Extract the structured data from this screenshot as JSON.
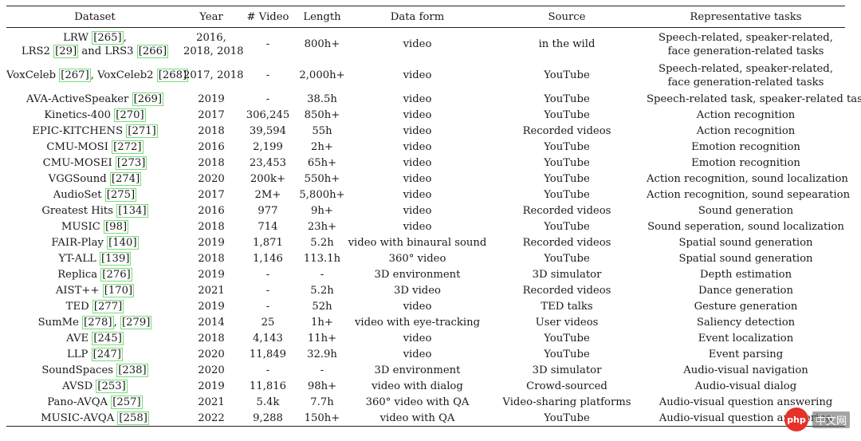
{
  "table": {
    "headers": [
      "Dataset",
      "Year",
      "# Video",
      "Length",
      "Data form",
      "Source",
      "Representative tasks"
    ],
    "rows": [
      {
        "dataset_parts": [
          "LRW ",
          {
            "ref": "[265]"
          },
          ",",
          "\n",
          "LRS2 ",
          {
            "ref": "[29]"
          },
          " and LRS3 ",
          {
            "ref": "[266]"
          }
        ],
        "year": [
          "2016,",
          "2018, 2018"
        ],
        "video": "-",
        "length": "800h+",
        "form": "video",
        "source": "in the wild",
        "tasks": [
          "Speech-related, speaker-related,",
          "face generation-related tasks"
        ]
      },
      {
        "dataset_parts": [
          "VoxCeleb ",
          {
            "ref": "[267]"
          },
          ", VoxCeleb2 ",
          {
            "ref": "[268]"
          }
        ],
        "year": [
          "2017, 2018"
        ],
        "video": "-",
        "length": "2,000h+",
        "form": "video",
        "source": "YouTube",
        "tasks": [
          "Speech-related, speaker-related,",
          "face generation-related tasks"
        ]
      },
      {
        "dataset_parts": [
          "AVA-ActiveSpeaker ",
          {
            "ref": "[269]"
          }
        ],
        "year": [
          "2019"
        ],
        "video": "-",
        "length": "38.5h",
        "form": "video",
        "source": "YouTube",
        "tasks": [
          "Speech-related task, speaker-related task"
        ]
      },
      {
        "dataset_parts": [
          "Kinetics-400 ",
          {
            "ref": "[270]"
          }
        ],
        "year": [
          "2017"
        ],
        "video": "306,245",
        "length": "850h+",
        "form": "video",
        "source": "YouTube",
        "tasks": [
          "Action recognition"
        ]
      },
      {
        "dataset_parts": [
          "EPIC-KITCHENS ",
          {
            "ref": "[271]"
          }
        ],
        "year": [
          "2018"
        ],
        "video": "39,594",
        "length": "55h",
        "form": "video",
        "source": "Recorded videos",
        "tasks": [
          "Action recognition"
        ]
      },
      {
        "dataset_parts": [
          "CMU-MOSI ",
          {
            "ref": "[272]"
          }
        ],
        "year": [
          "2016"
        ],
        "video": "2,199",
        "length": "2h+",
        "form": "video",
        "source": "YouTube",
        "tasks": [
          "Emotion recognition"
        ]
      },
      {
        "dataset_parts": [
          "CMU-MOSEI ",
          {
            "ref": "[273]"
          }
        ],
        "year": [
          "2018"
        ],
        "video": "23,453",
        "length": "65h+",
        "form": "video",
        "source": "YouTube",
        "tasks": [
          "Emotion recognition"
        ]
      },
      {
        "dataset_parts": [
          "VGGSound ",
          {
            "ref": "[274]"
          }
        ],
        "year": [
          "2020"
        ],
        "video": "200k+",
        "length": "550h+",
        "form": "video",
        "source": "YouTube",
        "tasks": [
          "Action recognition, sound localization"
        ]
      },
      {
        "dataset_parts": [
          "AudioSet ",
          {
            "ref": "[275]"
          }
        ],
        "year": [
          "2017"
        ],
        "video": "2M+",
        "length": "5,800h+",
        "form": "video",
        "source": "YouTube",
        "tasks": [
          "Action recognition, sound sepearation"
        ]
      },
      {
        "dataset_parts": [
          "Greatest Hits ",
          {
            "ref": "[134]"
          }
        ],
        "year": [
          "2016"
        ],
        "video": "977",
        "length": "9h+",
        "form": "video",
        "source": "Recorded videos",
        "tasks": [
          "Sound generation"
        ]
      },
      {
        "dataset_parts": [
          "MUSIC ",
          {
            "ref": "[98]"
          }
        ],
        "year": [
          "2018"
        ],
        "video": "714",
        "length": "23h+",
        "form": "video",
        "source": "YouTube",
        "tasks": [
          "Sound seperation, sound localization"
        ]
      },
      {
        "dataset_parts": [
          "FAIR-Play ",
          {
            "ref": "[140]"
          }
        ],
        "year": [
          "2019"
        ],
        "video": "1,871",
        "length": "5.2h",
        "form": "video with binaural sound",
        "source": "Recorded videos",
        "tasks": [
          "Spatial sound generation"
        ]
      },
      {
        "dataset_parts": [
          "YT-ALL ",
          {
            "ref": "[139]"
          }
        ],
        "year": [
          "2018"
        ],
        "video": "1,146",
        "length": "113.1h",
        "form": "360° video",
        "source": "YouTube",
        "tasks": [
          "Spatial sound generation"
        ]
      },
      {
        "dataset_parts": [
          "Replica ",
          {
            "ref": "[276]"
          }
        ],
        "year": [
          "2019"
        ],
        "video": "-",
        "length": "-",
        "form": "3D environment",
        "source": "3D simulator",
        "tasks": [
          "Depth estimation"
        ]
      },
      {
        "dataset_parts": [
          "AIST++ ",
          {
            "ref": "[170]"
          }
        ],
        "year": [
          "2021"
        ],
        "video": "-",
        "length": "5.2h",
        "form": "3D video",
        "source": "Recorded videos",
        "tasks": [
          "Dance generation"
        ]
      },
      {
        "dataset_parts": [
          "TED ",
          {
            "ref": "[277]"
          }
        ],
        "year": [
          "2019"
        ],
        "video": "-",
        "length": "52h",
        "form": "video",
        "source": "TED talks",
        "tasks": [
          "Gesture generation"
        ]
      },
      {
        "dataset_parts": [
          "SumMe ",
          {
            "ref": "[278]"
          },
          ", ",
          {
            "ref": "[279]"
          }
        ],
        "year": [
          "2014"
        ],
        "video": "25",
        "length": "1h+",
        "form": "video with eye-tracking",
        "source": "User videos",
        "tasks": [
          "Saliency detection"
        ]
      },
      {
        "dataset_parts": [
          "AVE ",
          {
            "ref": "[245]"
          }
        ],
        "year": [
          "2018"
        ],
        "video": "4,143",
        "length": "11h+",
        "form": "video",
        "source": "YouTube",
        "tasks": [
          "Event localization"
        ]
      },
      {
        "dataset_parts": [
          "LLP ",
          {
            "ref": "[247]"
          }
        ],
        "year": [
          "2020"
        ],
        "video": "11,849",
        "length": "32.9h",
        "form": "video",
        "source": "YouTube",
        "tasks": [
          "Event parsing"
        ]
      },
      {
        "dataset_parts": [
          "SoundSpaces ",
          {
            "ref": "[238]"
          }
        ],
        "year": [
          "2020"
        ],
        "video": "-",
        "length": "-",
        "form": "3D environment",
        "source": "3D simulator",
        "tasks": [
          "Audio-visual navigation"
        ]
      },
      {
        "dataset_parts": [
          "AVSD ",
          {
            "ref": "[253]"
          }
        ],
        "year": [
          "2019"
        ],
        "video": "11,816",
        "length": "98h+",
        "form": "video with dialog",
        "source": "Crowd-sourced",
        "tasks": [
          "Audio-visual dialog"
        ]
      },
      {
        "dataset_parts": [
          "Pano-AVQA ",
          {
            "ref": "[257]"
          }
        ],
        "year": [
          "2021"
        ],
        "video": "5.4k",
        "length": "7.7h",
        "form": "360° video with QA",
        "source": "Video-sharing platforms",
        "tasks": [
          "Audio-visual question answering"
        ]
      },
      {
        "dataset_parts": [
          "MUSIC-AVQA ",
          {
            "ref": "[258]"
          }
        ],
        "year": [
          "2022"
        ],
        "video": "9,288",
        "length": "150h+",
        "form": "video with QA",
        "source": "YouTube",
        "tasks": [
          "Audio-visual question answering"
        ]
      }
    ]
  },
  "watermark": {
    "logo": "php",
    "text": "中文网"
  }
}
